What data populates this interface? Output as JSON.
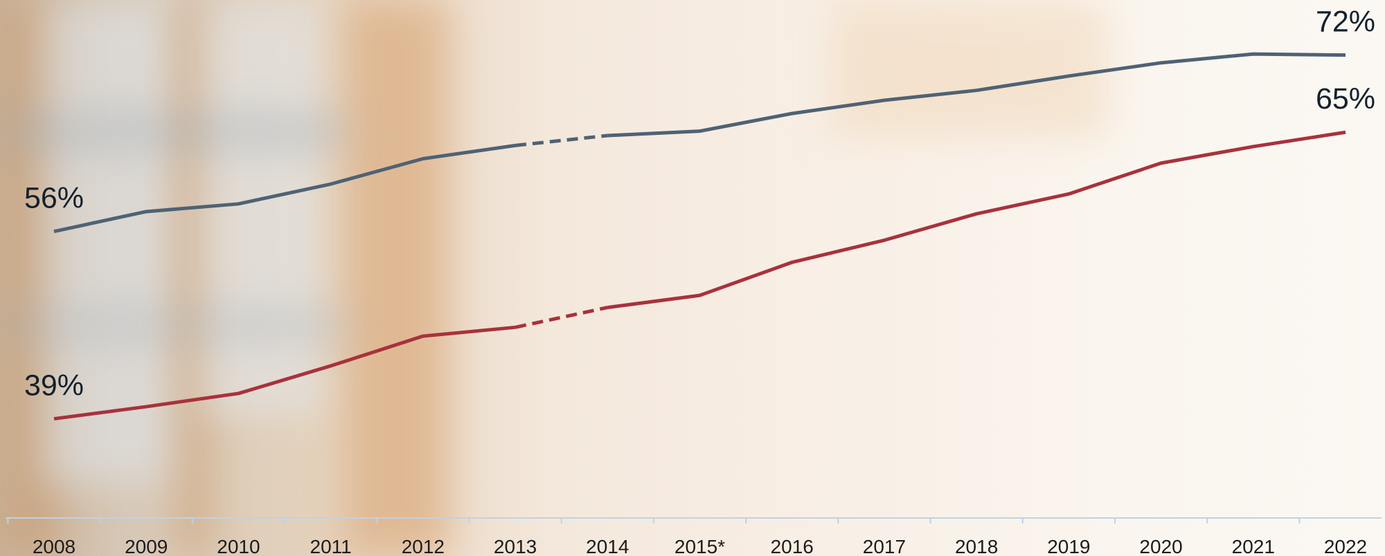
{
  "chart_data": {
    "type": "line",
    "categories": [
      "2008",
      "2009",
      "2010",
      "2011",
      "2012",
      "2013",
      "2014",
      "2015*",
      "2016",
      "2017",
      "2018",
      "2019",
      "2020",
      "2021",
      "2022"
    ],
    "ylim": [
      30,
      77
    ],
    "dashed_segments": [
      5
    ],
    "series": [
      {
        "name": null,
        "color": "#4f6274",
        "values": [
          56,
          57.8,
          58.5,
          60.3,
          62.6,
          63.8,
          64.7,
          65.1,
          66.7,
          67.9,
          68.8,
          70.1,
          71.3,
          72.1,
          72
        ],
        "value_labels": [
          "56%",
          null,
          null,
          null,
          null,
          null,
          null,
          null,
          null,
          null,
          null,
          null,
          null,
          null,
          "72%"
        ]
      },
      {
        "name": null,
        "color": "#a8323c",
        "values": [
          39,
          40.1,
          41.3,
          43.8,
          46.5,
          47.3,
          49.1,
          50.2,
          53.2,
          55.2,
          57.6,
          59.4,
          62.2,
          63.7,
          65
        ],
        "value_labels": [
          "39%",
          null,
          null,
          null,
          null,
          null,
          null,
          null,
          null,
          null,
          null,
          null,
          null,
          null,
          "65%"
        ]
      }
    ]
  }
}
